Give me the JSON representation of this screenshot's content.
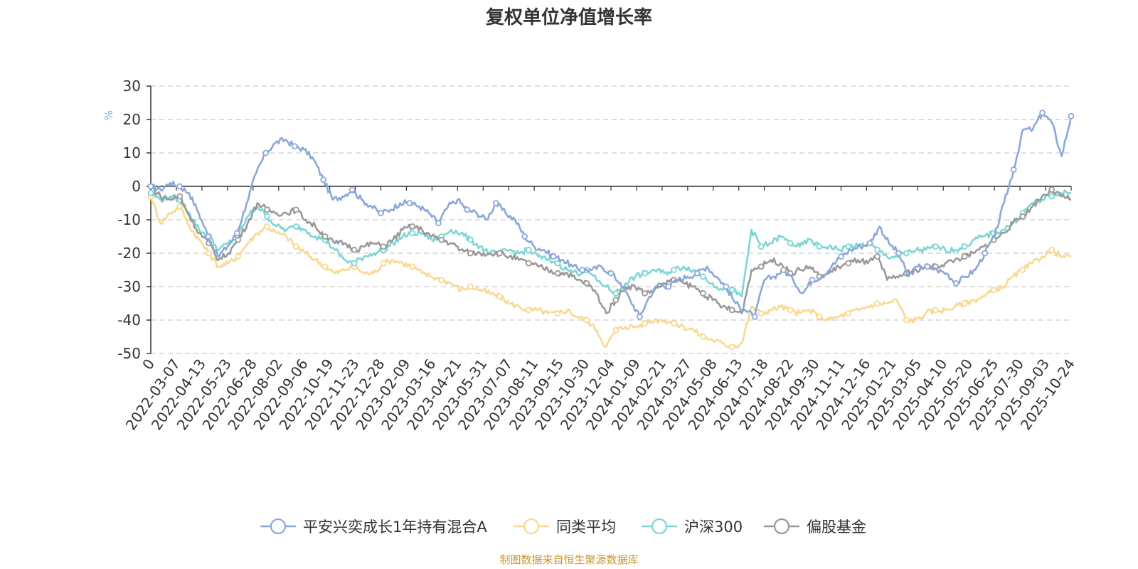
{
  "chart_data": {
    "type": "line",
    "title": "复权单位净值增长率",
    "ylabel": "%",
    "ylim": [
      -50,
      30
    ],
    "y_ticks": [
      30,
      20,
      10,
      0,
      -10,
      -20,
      -30,
      -40,
      -50
    ],
    "grid": true,
    "legend_position": "bottom",
    "source_note": "制图数据来自恒生聚源数据库",
    "x_tick_labels": [
      "0",
      "2022-03-07",
      "2022-04-13",
      "2022-05-23",
      "2022-06-28",
      "2022-08-02",
      "2022-09-06",
      "2022-10-19",
      "2022-11-23",
      "2022-12-28",
      "2023-02-09",
      "2023-03-16",
      "2023-04-21",
      "2023-05-31",
      "2023-07-07",
      "2023-08-11",
      "2023-09-15",
      "2023-10-30",
      "2023-12-04",
      "2024-01-09",
      "2024-02-21",
      "2024-03-27",
      "2024-05-08",
      "2024-06-13",
      "2024-07-18",
      "2024-08-22",
      "2024-09-30",
      "2024-11-11",
      "2024-12-16",
      "2025-01-21",
      "2025-03-05",
      "2025-04-10",
      "2025-05-20",
      "2025-06-25",
      "2025-07-30",
      "2025-09-03",
      "2025-10-24"
    ],
    "series": [
      {
        "name": "平安兴奕成长1年持有混合A",
        "color": "#8aa8d8",
        "values": [
          0,
          -1,
          1,
          0,
          -2,
          -8,
          -15,
          -21,
          -18,
          -14,
          -5,
          4,
          10,
          13,
          14,
          12,
          11,
          8,
          2,
          -4,
          -3,
          -1,
          -4,
          -6,
          -8,
          -7,
          -5,
          -5,
          -6,
          -8,
          -11,
          -6,
          -4,
          -7,
          -8,
          -10,
          -5,
          -8,
          -10,
          -15,
          -18,
          -19,
          -21,
          -22,
          -24,
          -25,
          -25,
          -24,
          -26,
          -29,
          -34,
          -39,
          -33,
          -29,
          -30,
          -28,
          -27,
          -26,
          -24,
          -27,
          -30,
          -35,
          -37,
          -39,
          -28,
          -27,
          -25,
          -28,
          -32,
          -28,
          -27,
          -24,
          -21,
          -19,
          -18,
          -17,
          -12,
          -17,
          -20,
          -27,
          -24,
          -24,
          -25,
          -26,
          -29,
          -27,
          -25,
          -20,
          -15,
          -5,
          5,
          17,
          17,
          22,
          19,
          9,
          21
        ]
      },
      {
        "name": "同类平均",
        "color": "#f9d890",
        "values": [
          -3,
          -11,
          -8,
          -6,
          -12,
          -16,
          -20,
          -24,
          -23,
          -21,
          -17,
          -14,
          -12,
          -14,
          -15,
          -18,
          -20,
          -22,
          -24,
          -26,
          -25,
          -24,
          -26,
          -26,
          -23,
          -22,
          -23,
          -24,
          -26,
          -27,
          -28,
          -29,
          -31,
          -30,
          -31,
          -32,
          -33,
          -35,
          -36,
          -37,
          -37,
          -38,
          -38,
          -37,
          -39,
          -40,
          -43,
          -48,
          -43,
          -42,
          -42,
          -41,
          -40,
          -40,
          -41,
          -42,
          -43,
          -45,
          -46,
          -47,
          -48,
          -47,
          -36,
          -38,
          -37,
          -36,
          -37,
          -38,
          -37,
          -39,
          -40,
          -39,
          -38,
          -37,
          -36,
          -35,
          -35,
          -34,
          -40,
          -40,
          -38,
          -37,
          -37,
          -36,
          -35,
          -34,
          -33,
          -31,
          -30,
          -27,
          -25,
          -23,
          -21,
          -19,
          -21,
          -21
        ]
      },
      {
        "name": "沪深300",
        "color": "#7cd6d6",
        "values": [
          -2,
          -4,
          -3,
          -4,
          -8,
          -13,
          -15,
          -19,
          -17,
          -15,
          -9,
          -6,
          -9,
          -12,
          -13,
          -12,
          -13,
          -15,
          -16,
          -19,
          -22,
          -23,
          -21,
          -20,
          -19,
          -17,
          -15,
          -14,
          -14,
          -16,
          -15,
          -13,
          -14,
          -16,
          -18,
          -20,
          -20,
          -19,
          -20,
          -19,
          -21,
          -22,
          -23,
          -25,
          -26,
          -25,
          -28,
          -30,
          -32,
          -29,
          -27,
          -26,
          -25,
          -26,
          -25,
          -24,
          -25,
          -27,
          -29,
          -31,
          -31,
          -33,
          -13,
          -18,
          -17,
          -15,
          -17,
          -18,
          -16,
          -18,
          -18,
          -19,
          -18,
          -18,
          -17,
          -19,
          -21,
          -21,
          -20,
          -19,
          -19,
          -18,
          -19,
          -19,
          -18,
          -16,
          -15,
          -14,
          -13,
          -11,
          -8,
          -5,
          -4,
          -3,
          -2,
          -2
        ]
      },
      {
        "name": "偏股基金",
        "color": "#999999",
        "values": [
          0,
          -3,
          -4,
          -3,
          -9,
          -14,
          -17,
          -22,
          -20,
          -16,
          -11,
          -5,
          -7,
          -8,
          -8,
          -7,
          -10,
          -12,
          -15,
          -17,
          -17,
          -19,
          -18,
          -17,
          -18,
          -16,
          -13,
          -12,
          -13,
          -15,
          -16,
          -17,
          -19,
          -20,
          -20,
          -20,
          -20,
          -21,
          -22,
          -23,
          -24,
          -25,
          -26,
          -26,
          -28,
          -29,
          -32,
          -38,
          -34,
          -30,
          -30,
          -32,
          -31,
          -29,
          -28,
          -29,
          -30,
          -32,
          -34,
          -36,
          -37,
          -38,
          -25,
          -24,
          -22,
          -23,
          -26,
          -25,
          -24,
          -27,
          -26,
          -24,
          -23,
          -22,
          -23,
          -21,
          -28,
          -27,
          -26,
          -25,
          -24,
          -24,
          -23,
          -22,
          -21,
          -20,
          -18,
          -16,
          -14,
          -11,
          -9,
          -6,
          -3,
          -1,
          -3,
          -4
        ]
      }
    ]
  }
}
